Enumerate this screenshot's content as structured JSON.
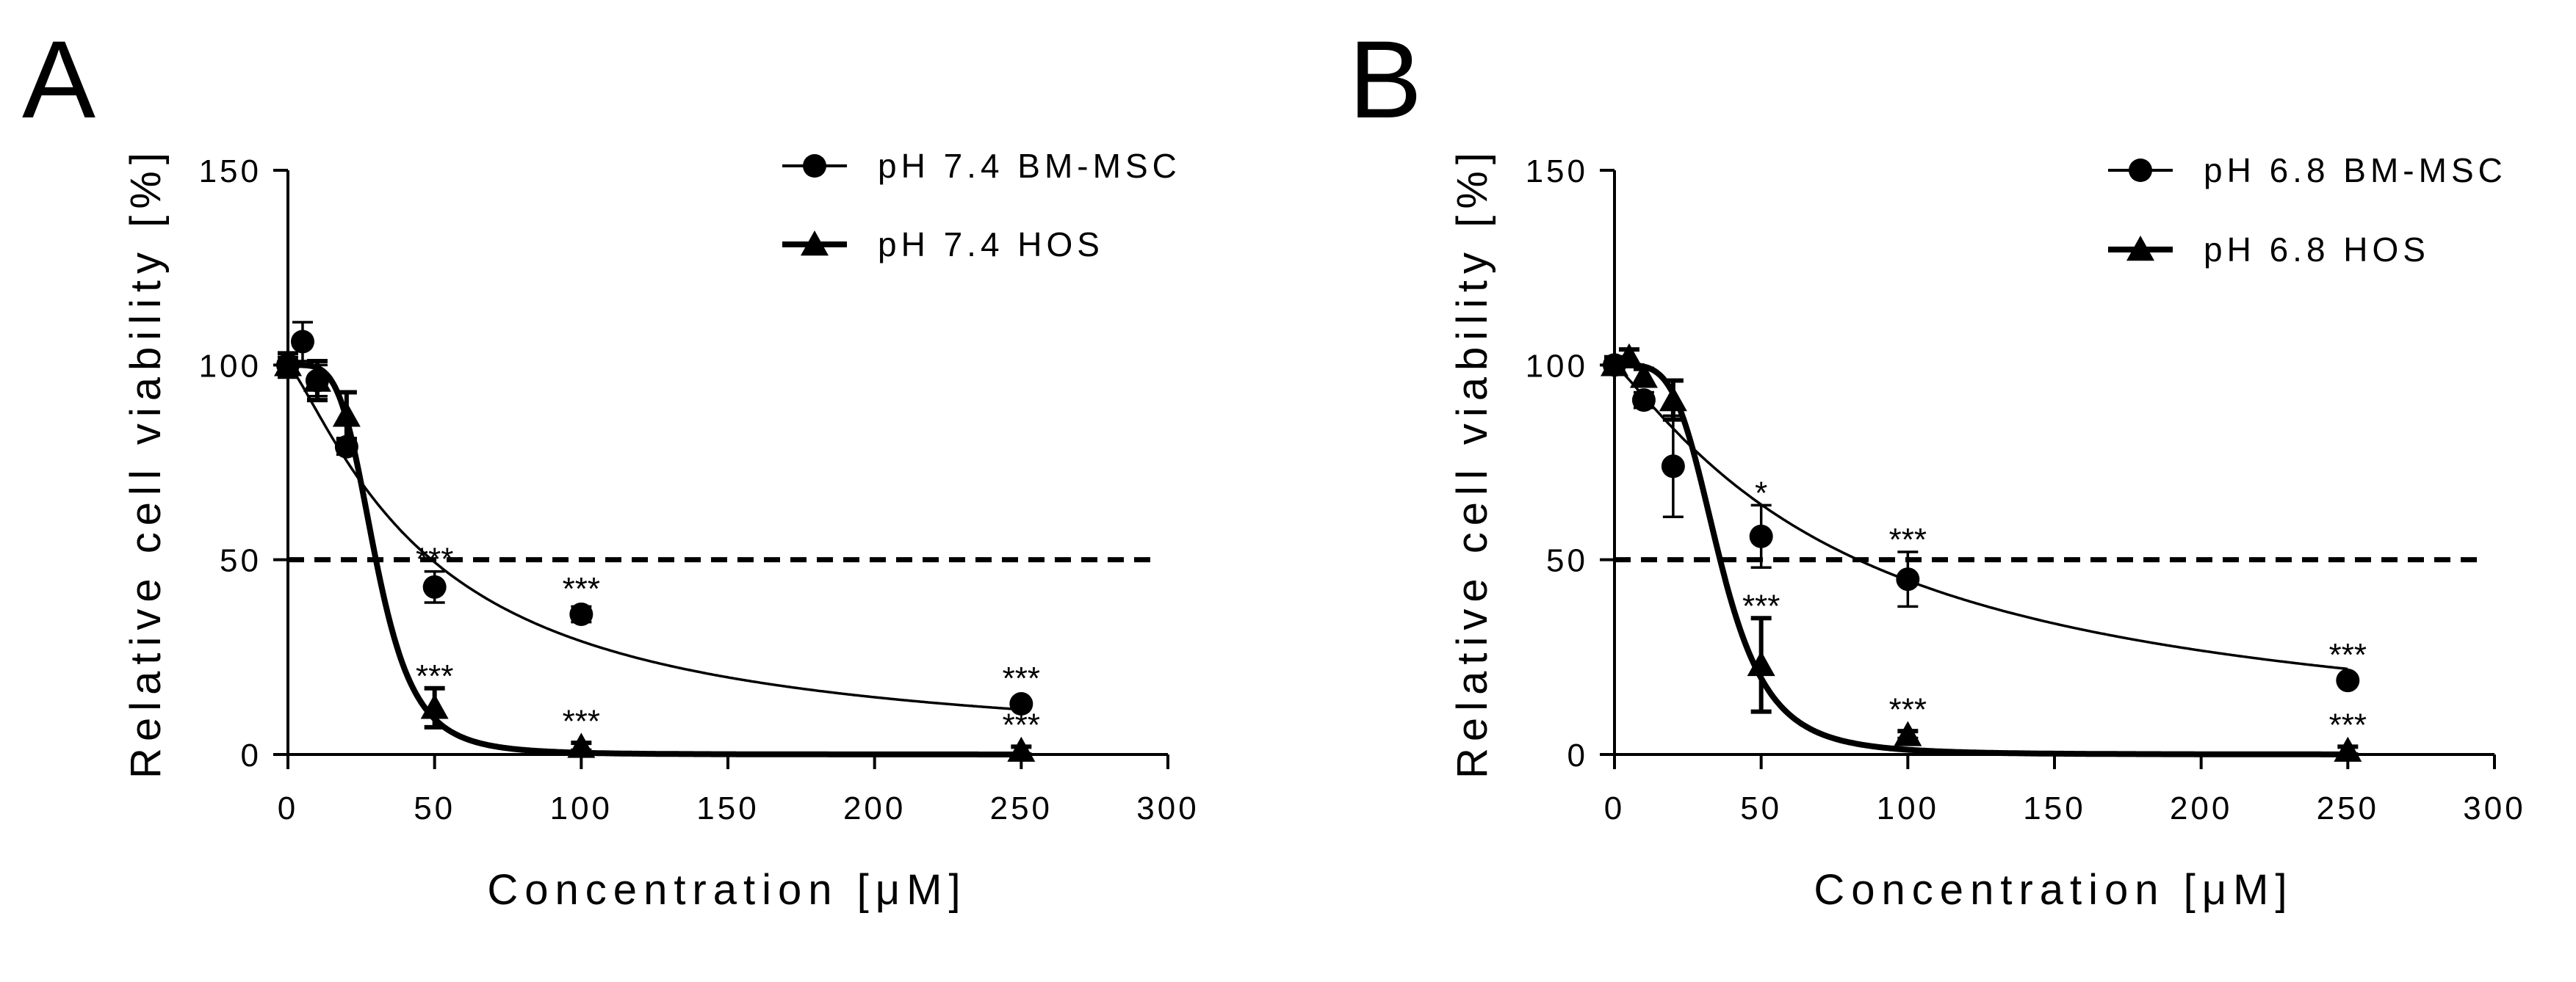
{
  "chart_data": [
    {
      "panel_label": "A",
      "type": "scatter",
      "xlabel": "Concentration [μM]",
      "ylabel": "Relative cell viability [%]",
      "xlim": [
        0,
        300
      ],
      "ylim": [
        0,
        150
      ],
      "xticks": [
        0,
        50,
        100,
        150,
        200,
        250,
        300
      ],
      "yticks": [
        0,
        50,
        100,
        150
      ],
      "reference_line": {
        "y": 50,
        "style": "dashed"
      },
      "legend_position": "top-right",
      "series": [
        {
          "name": "pH 7.4 BM-MSC",
          "marker": "circle",
          "line": "thin",
          "x": [
            0,
            5,
            10,
            20,
            50,
            100,
            250
          ],
          "y": [
            100,
            106,
            96,
            79,
            43,
            36,
            13
          ],
          "err": [
            2,
            5,
            4,
            2,
            4,
            2,
            1
          ],
          "sig": [
            "",
            "",
            "",
            "",
            "***",
            "***",
            "***"
          ],
          "fit": {
            "bottom": 0,
            "top": 100,
            "ic50": 49,
            "hill": 1.25
          }
        },
        {
          "name": "pH 7.4 HOS",
          "marker": "triangle",
          "line": "thick",
          "x": [
            0,
            10,
            20,
            50,
            100,
            250
          ],
          "y": [
            100,
            96,
            87,
            12,
            2,
            1
          ],
          "err": [
            3,
            5,
            6,
            5,
            1,
            1
          ],
          "sig": [
            "",
            "",
            "",
            "***",
            "***",
            "***"
          ],
          "fit": {
            "bottom": 0,
            "top": 100,
            "ic50": 30,
            "hill": 4.5
          }
        }
      ]
    },
    {
      "panel_label": "B",
      "type": "scatter",
      "xlabel": "Concentration [μM]",
      "ylabel": "Relative cell viability [%]",
      "xlim": [
        0,
        300
      ],
      "ylim": [
        0,
        150
      ],
      "xticks": [
        0,
        50,
        100,
        150,
        200,
        250,
        300
      ],
      "yticks": [
        0,
        50,
        100,
        150
      ],
      "reference_line": {
        "y": 50,
        "style": "dashed"
      },
      "legend_position": "top-right",
      "series": [
        {
          "name": "pH 6.8 BM-MSC",
          "marker": "circle",
          "line": "thin",
          "x": [
            0,
            10,
            20,
            50,
            100,
            250
          ],
          "y": [
            100,
            91,
            74,
            56,
            45,
            19
          ],
          "err": [
            2,
            2,
            13,
            8,
            7,
            1
          ],
          "sig": [
            "",
            "",
            "",
            "*",
            "***",
            "***"
          ],
          "fit": {
            "bottom": 0,
            "top": 100,
            "ic50": 83,
            "hill": 1.15
          }
        },
        {
          "name": "pH 6.8 HOS",
          "marker": "triangle",
          "line": "thick",
          "x": [
            0,
            5,
            10,
            20,
            50,
            100,
            250
          ],
          "y": [
            100,
            102,
            97,
            91,
            23,
            5,
            1
          ],
          "err": [
            2,
            2,
            2,
            5,
            12,
            1,
            1
          ],
          "sig": [
            "",
            "",
            "",
            "",
            "***",
            "***",
            "***"
          ],
          "fit": {
            "bottom": 0,
            "top": 100,
            "ic50": 36,
            "hill": 4.3
          }
        }
      ]
    }
  ]
}
